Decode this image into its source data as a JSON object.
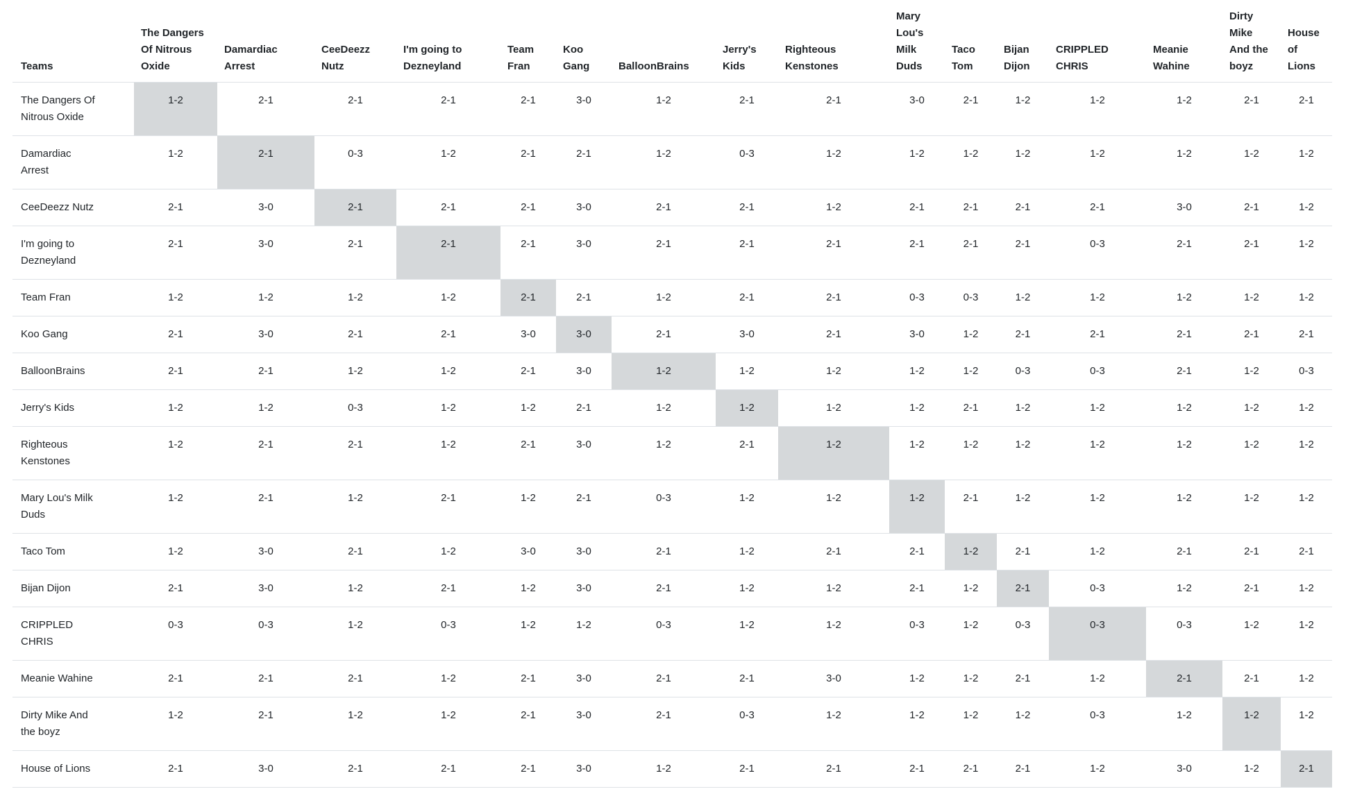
{
  "table": {
    "corner_label": "Teams",
    "teams": [
      "The Dangers Of Nitrous Oxide",
      "Damardiac Arrest",
      "CeeDeezz Nutz",
      "I'm going to Dezneyland",
      "Team Fran",
      "Koo Gang",
      "BalloonBrains",
      "Jerry's Kids",
      "Righteous Kenstones",
      "Mary Lou's Milk Duds",
      "Taco Tom",
      "Bijan Dijon",
      "CRIPPLED CHRIS",
      "Meanie Wahine",
      "Dirty Mike And the boyz",
      "House of Lions"
    ],
    "results": [
      [
        "1-2",
        "2-1",
        "2-1",
        "2-1",
        "2-1",
        "3-0",
        "1-2",
        "2-1",
        "2-1",
        "3-0",
        "2-1",
        "1-2",
        "1-2",
        "1-2",
        "2-1",
        "2-1"
      ],
      [
        "1-2",
        "2-1",
        "0-3",
        "1-2",
        "2-1",
        "2-1",
        "1-2",
        "0-3",
        "1-2",
        "1-2",
        "1-2",
        "1-2",
        "1-2",
        "1-2",
        "1-2",
        "1-2"
      ],
      [
        "2-1",
        "3-0",
        "2-1",
        "2-1",
        "2-1",
        "3-0",
        "2-1",
        "2-1",
        "1-2",
        "2-1",
        "2-1",
        "2-1",
        "2-1",
        "3-0",
        "2-1",
        "1-2"
      ],
      [
        "2-1",
        "3-0",
        "2-1",
        "2-1",
        "2-1",
        "3-0",
        "2-1",
        "2-1",
        "2-1",
        "2-1",
        "2-1",
        "2-1",
        "0-3",
        "2-1",
        "2-1",
        "1-2"
      ],
      [
        "1-2",
        "1-2",
        "1-2",
        "1-2",
        "2-1",
        "2-1",
        "1-2",
        "2-1",
        "2-1",
        "0-3",
        "0-3",
        "1-2",
        "1-2",
        "1-2",
        "1-2",
        "1-2"
      ],
      [
        "2-1",
        "3-0",
        "2-1",
        "2-1",
        "3-0",
        "3-0",
        "2-1",
        "3-0",
        "2-1",
        "3-0",
        "1-2",
        "2-1",
        "2-1",
        "2-1",
        "2-1",
        "2-1"
      ],
      [
        "2-1",
        "2-1",
        "1-2",
        "1-2",
        "2-1",
        "3-0",
        "1-2",
        "1-2",
        "1-2",
        "1-2",
        "1-2",
        "0-3",
        "0-3",
        "2-1",
        "1-2",
        "0-3"
      ],
      [
        "1-2",
        "1-2",
        "0-3",
        "1-2",
        "1-2",
        "2-1",
        "1-2",
        "1-2",
        "1-2",
        "1-2",
        "2-1",
        "1-2",
        "1-2",
        "1-2",
        "1-2",
        "1-2"
      ],
      [
        "1-2",
        "2-1",
        "2-1",
        "1-2",
        "2-1",
        "3-0",
        "1-2",
        "2-1",
        "1-2",
        "1-2",
        "1-2",
        "1-2",
        "1-2",
        "1-2",
        "1-2",
        "1-2"
      ],
      [
        "1-2",
        "2-1",
        "1-2",
        "2-1",
        "1-2",
        "2-1",
        "0-3",
        "1-2",
        "1-2",
        "1-2",
        "2-1",
        "1-2",
        "1-2",
        "1-2",
        "1-2",
        "1-2"
      ],
      [
        "1-2",
        "3-0",
        "2-1",
        "1-2",
        "3-0",
        "3-0",
        "2-1",
        "1-2",
        "2-1",
        "2-1",
        "1-2",
        "2-1",
        "1-2",
        "2-1",
        "2-1",
        "2-1"
      ],
      [
        "2-1",
        "3-0",
        "1-2",
        "2-1",
        "1-2",
        "3-0",
        "2-1",
        "1-2",
        "1-2",
        "2-1",
        "1-2",
        "2-1",
        "0-3",
        "1-2",
        "2-1",
        "1-2"
      ],
      [
        "0-3",
        "0-3",
        "1-2",
        "0-3",
        "1-2",
        "1-2",
        "0-3",
        "1-2",
        "1-2",
        "0-3",
        "1-2",
        "0-3",
        "0-3",
        "0-3",
        "1-2",
        "1-2"
      ],
      [
        "2-1",
        "2-1",
        "2-1",
        "1-2",
        "2-1",
        "3-0",
        "2-1",
        "2-1",
        "3-0",
        "1-2",
        "1-2",
        "2-1",
        "1-2",
        "2-1",
        "2-1",
        "1-2"
      ],
      [
        "1-2",
        "2-1",
        "1-2",
        "1-2",
        "2-1",
        "3-0",
        "2-1",
        "0-3",
        "1-2",
        "1-2",
        "1-2",
        "1-2",
        "0-3",
        "1-2",
        "1-2",
        "1-2"
      ],
      [
        "2-1",
        "3-0",
        "2-1",
        "2-1",
        "2-1",
        "3-0",
        "1-2",
        "2-1",
        "2-1",
        "2-1",
        "2-1",
        "2-1",
        "1-2",
        "3-0",
        "1-2",
        "2-1"
      ]
    ],
    "colors": {
      "diagonal_bg": "#d5d8da",
      "border": "#dee2e6",
      "text": "#212529",
      "background": "#ffffff"
    }
  }
}
